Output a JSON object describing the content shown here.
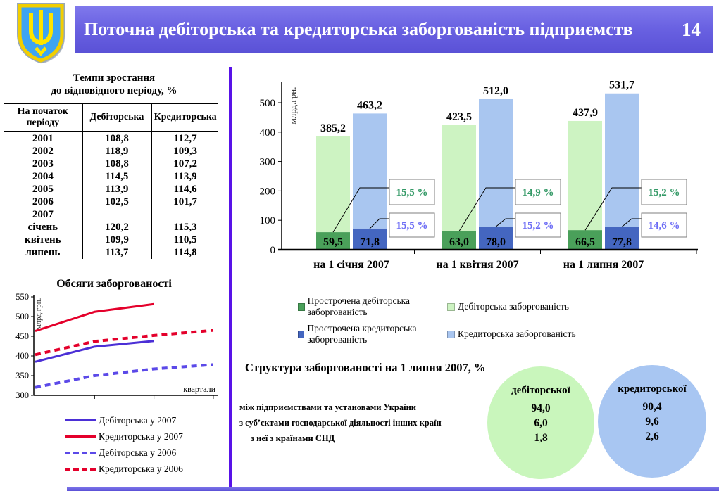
{
  "header": {
    "title": "Поточна дебіторська та кредиторська заборгованість підприємств",
    "page_number": "14"
  },
  "emblem": {
    "name": "coat-of-arms-of-ukraine",
    "shield_color": "#3EA4F2",
    "trident_color": "#FFE400",
    "border_color": "#F2CE00"
  },
  "colors": {
    "header_bar": "#6A62E2",
    "divider": "#5812E8",
    "debit_light": "#CDF3C2",
    "debit_dark": "#4AA05A",
    "credit_light": "#A9C6F0",
    "credit_dark": "#4466C0",
    "debit_pct_text": "#339966",
    "credit_pct_text": "#6B6BF5"
  },
  "growth_table": {
    "title_line1": "Темпи зростання",
    "title_line2": "до відповідного періоду, %",
    "columns": [
      "На початок періоду",
      "Дебіторська",
      "Кредиторська"
    ],
    "rows": [
      [
        "2001",
        "108,8",
        "112,7"
      ],
      [
        "2002",
        "118,9",
        "109,3"
      ],
      [
        "2003",
        "108,8",
        "107,2"
      ],
      [
        "2004",
        "114,5",
        "113,9"
      ],
      [
        "2005",
        "113,9",
        "114,6"
      ],
      [
        "2006",
        "102,5",
        "101,7"
      ],
      [
        "2007",
        "",
        ""
      ],
      [
        "січень",
        "120,2",
        "115,3"
      ],
      [
        "квітень",
        "109,9",
        "110,5"
      ],
      [
        "липень",
        "113,7",
        "114,8"
      ]
    ]
  },
  "chart_data": [
    {
      "type": "bar",
      "title": "",
      "ylabel": "млрд.грн.",
      "ylim": [
        0,
        560
      ],
      "yticks": [
        0,
        100,
        200,
        300,
        400,
        500
      ],
      "categories": [
        "на 1 січня 2007",
        "на 1 квітня 2007",
        "на 1 липня 2007"
      ],
      "series": [
        {
          "name": "Дебіторська заборгованість",
          "color": "#CDF3C2",
          "values": [
            385.2,
            423.5,
            437.9
          ],
          "labels": [
            "385,2",
            "423,5",
            "437,9"
          ]
        },
        {
          "name": "Прострочена дебіторська заборгованість",
          "color": "#4AA05A",
          "values": [
            59.5,
            63.0,
            66.5
          ],
          "labels": [
            "59,5",
            "63,0",
            "66,5"
          ]
        },
        {
          "name": "Кредиторська заборгованість",
          "color": "#A9C6F0",
          "values": [
            463.2,
            512.0,
            531.7
          ],
          "labels": [
            "463,2",
            "512,0",
            "531,7"
          ]
        },
        {
          "name": "Прострочена кредиторська заборгованість",
          "color": "#4466C0",
          "values": [
            71.8,
            78.0,
            77.8
          ],
          "labels": [
            "71,8",
            "78,0",
            "77,8"
          ]
        }
      ],
      "callouts": [
        {
          "name": "частка простроченої дебіторської",
          "color": "#339966",
          "labels": [
            "15,5 %",
            "14,9 %",
            "15,2 %"
          ]
        },
        {
          "name": "частка простроченої кредиторської",
          "color": "#6B6BF5",
          "labels": [
            "15,5 %",
            "15,2 %",
            "14,6 %"
          ]
        }
      ],
      "legend": [
        {
          "label": "Прострочена дебіторська заборгованість",
          "color": "#4AA05A"
        },
        {
          "label": "Дебіторська заборгованість",
          "color": "#CDF3C2"
        },
        {
          "label": "Прострочена кредиторська заборгованість",
          "color": "#4466C0"
        },
        {
          "label": "Кредиторська заборгованість",
          "color": "#A9C6F0"
        }
      ]
    },
    {
      "type": "line",
      "title": "Обсяги заборгованості",
      "ylabel": "млрд.грн.",
      "xlabel": "квартали",
      "ylim": [
        300,
        550
      ],
      "yticks": [
        300,
        350,
        400,
        450,
        500,
        550
      ],
      "series": [
        {
          "name": "Дебіторська у 2007",
          "color": "#4B2FD6",
          "dashed": false,
          "x": [
            0,
            1,
            2
          ],
          "values": [
            385.2,
            423.5,
            437.9
          ]
        },
        {
          "name": "Кредиторська у 2007",
          "color": "#E4002B",
          "dashed": false,
          "x": [
            0,
            1,
            2
          ],
          "values": [
            463.2,
            512.0,
            531.7
          ]
        },
        {
          "name": "Дебіторська у 2006",
          "color": "#5B49E8",
          "dashed": true,
          "x": [
            0,
            1,
            2,
            3
          ],
          "values": [
            320,
            350,
            367,
            378
          ]
        },
        {
          "name": "Кредиторська у 2006",
          "color": "#E4002B",
          "dashed": true,
          "x": [
            0,
            1,
            2,
            3
          ],
          "values": [
            403,
            437,
            452,
            465
          ]
        }
      ]
    },
    {
      "type": "table",
      "title": "Структура заборгованості на 1 липня 2007, %",
      "row_labels": [
        "між підприємствами та установами України",
        "з суб’єктами господарської діяльності інших країн",
        "з неї з країнами СНД"
      ],
      "columns": [
        {
          "label": "дебіторської",
          "fill": "#C9F6BC",
          "values": [
            "94,0",
            "6,0",
            "1,8"
          ]
        },
        {
          "label": "кредиторської",
          "fill": "#A8C6F2",
          "values": [
            "90,4",
            "9,6",
            "2,6"
          ]
        }
      ]
    }
  ]
}
